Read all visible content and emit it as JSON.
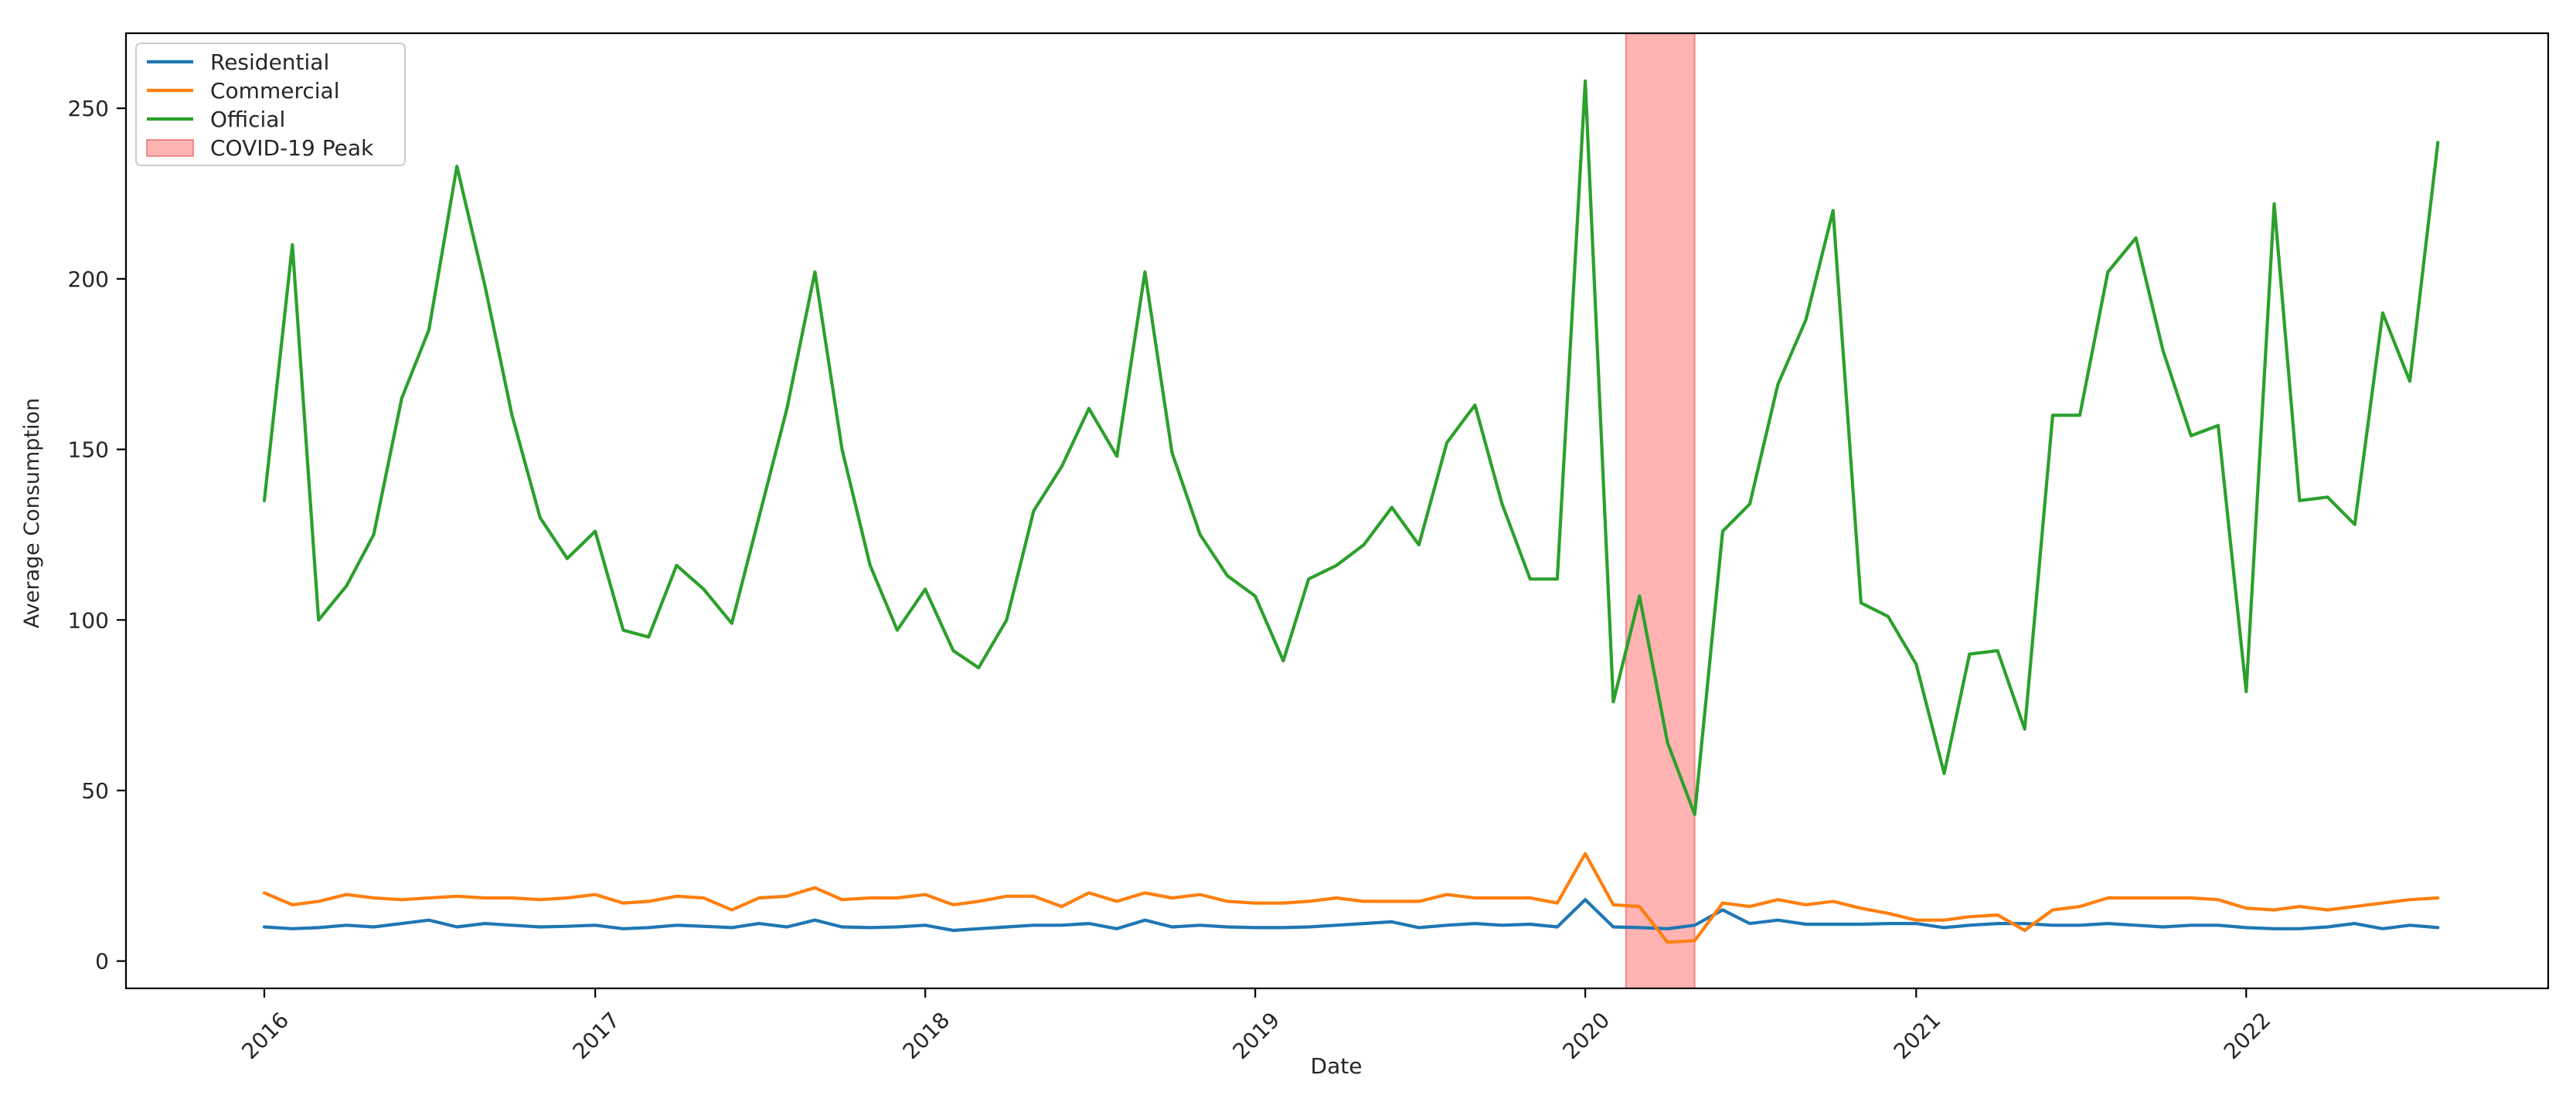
{
  "chart_data": {
    "type": "line",
    "title": "",
    "xlabel": "Date",
    "ylabel": "Average Consumption",
    "x_type": "date",
    "xlim": [
      "2015-08-01",
      "2022-12-01"
    ],
    "ylim": [
      -8,
      272
    ],
    "grid": false,
    "legend_position": "top-left",
    "x_ticks": [
      {
        "label": "2016",
        "date": "2016-01-01"
      },
      {
        "label": "2017",
        "date": "2017-01-01"
      },
      {
        "label": "2018",
        "date": "2018-01-01"
      },
      {
        "label": "2019",
        "date": "2019-01-01"
      },
      {
        "label": "2020",
        "date": "2020-01-01"
      },
      {
        "label": "2021",
        "date": "2021-01-01"
      },
      {
        "label": "2022",
        "date": "2022-01-01"
      }
    ],
    "y_ticks": [
      0,
      50,
      100,
      150,
      200,
      250
    ],
    "x": [
      "2016-01-01",
      "2016-02-01",
      "2016-03-01",
      "2016-04-01",
      "2016-05-01",
      "2016-06-01",
      "2016-07-01",
      "2016-08-01",
      "2016-09-01",
      "2016-10-01",
      "2016-11-01",
      "2016-12-01",
      "2017-01-01",
      "2017-02-01",
      "2017-03-01",
      "2017-04-01",
      "2017-05-01",
      "2017-06-01",
      "2017-07-01",
      "2017-08-01",
      "2017-09-01",
      "2017-10-01",
      "2017-11-01",
      "2017-12-01",
      "2018-01-01",
      "2018-02-01",
      "2018-03-01",
      "2018-04-01",
      "2018-05-01",
      "2018-06-01",
      "2018-07-01",
      "2018-08-01",
      "2018-09-01",
      "2018-10-01",
      "2018-11-01",
      "2018-12-01",
      "2019-01-01",
      "2019-02-01",
      "2019-03-01",
      "2019-04-01",
      "2019-05-01",
      "2019-06-01",
      "2019-07-01",
      "2019-08-01",
      "2019-09-01",
      "2019-10-01",
      "2019-11-01",
      "2019-12-01",
      "2020-01-01",
      "2020-02-01",
      "2020-03-01",
      "2020-04-01",
      "2020-05-01",
      "2020-06-01",
      "2020-07-01",
      "2020-08-01",
      "2020-09-01",
      "2020-10-01",
      "2020-11-01",
      "2020-12-01",
      "2021-01-01",
      "2021-02-01",
      "2021-03-01",
      "2021-04-01",
      "2021-05-01",
      "2021-06-01",
      "2021-07-01",
      "2021-08-01",
      "2021-09-01",
      "2021-10-01",
      "2021-11-01",
      "2021-12-01",
      "2022-01-01",
      "2022-02-01",
      "2022-03-01",
      "2022-04-01",
      "2022-05-01",
      "2022-06-01",
      "2022-07-01",
      "2022-08-01"
    ],
    "series": [
      {
        "name": "Residential",
        "color": "#1f77b4",
        "values": [
          10,
          9.5,
          9.8,
          10.5,
          10,
          11,
          12,
          10,
          11,
          10.5,
          10,
          10.2,
          10.5,
          9.5,
          9.8,
          10.5,
          10.2,
          9.8,
          11,
          10,
          12,
          10,
          9.8,
          10,
          10.5,
          9,
          9.5,
          10,
          10.5,
          10.5,
          11,
          9.5,
          12,
          10,
          10.5,
          10,
          9.8,
          9.8,
          10,
          10.5,
          11,
          11.5,
          9.8,
          10.5,
          11,
          10.5,
          10.8,
          10,
          18,
          10,
          9.8,
          9.5,
          10.5,
          15,
          11,
          12,
          10.8,
          10.8,
          10.8,
          11,
          11,
          9.8,
          10.5,
          11,
          11,
          10.5,
          10.5,
          11,
          10.5,
          10,
          10.5,
          10.5,
          9.8,
          9.5,
          9.5,
          10,
          11,
          9.5,
          10.5,
          9.8
        ]
      },
      {
        "name": "Commercial",
        "color": "#ff7f0e",
        "values": [
          20,
          16.5,
          17.5,
          19.5,
          18.5,
          18,
          18.5,
          19,
          18.5,
          18.5,
          18,
          18.5,
          19.5,
          17,
          17.5,
          19,
          18.5,
          15,
          18.5,
          19,
          21.5,
          18,
          18.5,
          18.5,
          19.5,
          16.5,
          17.5,
          19,
          19,
          16,
          20,
          17.5,
          20,
          18.5,
          19.5,
          17.5,
          17,
          17,
          17.5,
          18.5,
          17.5,
          17.5,
          17.5,
          19.5,
          18.5,
          18.5,
          18.5,
          17,
          31.5,
          16.5,
          16,
          5.5,
          6,
          17,
          16,
          18,
          16.5,
          17.5,
          15.5,
          14,
          12,
          12,
          13,
          13.5,
          9,
          15,
          16,
          18.5,
          18.5,
          18.5,
          18.5,
          18,
          15.5,
          15,
          16,
          15,
          16,
          17,
          18,
          18.5
        ]
      },
      {
        "name": "Official",
        "color": "#2ca02c",
        "values": [
          135,
          210,
          100,
          110,
          125,
          165,
          185,
          233,
          198,
          160,
          130,
          118,
          126,
          97,
          95,
          116,
          109,
          99,
          130,
          162,
          202,
          150,
          116,
          97,
          109,
          91,
          86,
          100,
          132,
          145,
          162,
          148,
          202,
          149,
          125,
          113,
          107,
          88,
          112,
          116,
          122,
          133,
          122,
          152,
          163,
          134,
          112,
          112,
          258,
          76,
          107,
          64,
          43,
          126,
          134,
          169,
          188,
          220,
          105,
          101,
          87,
          55,
          90,
          91,
          68,
          160,
          160,
          202,
          212,
          179,
          154,
          157,
          79,
          222,
          135,
          136,
          128,
          190,
          170,
          240
        ]
      }
    ],
    "highlight": {
      "name": "COVID-19 Peak",
      "start": "2020-02-15",
      "end": "2020-05-01",
      "color": "#ff9999"
    }
  }
}
